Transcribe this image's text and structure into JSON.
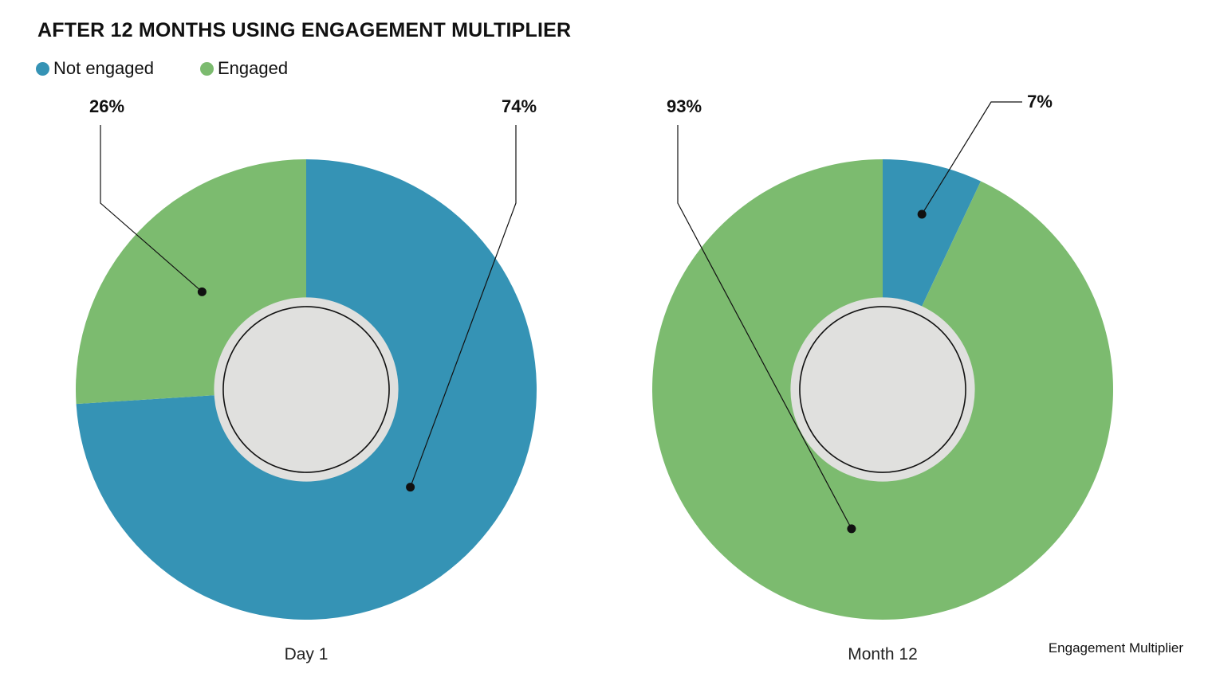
{
  "title": "AFTER 12 MONTHS USING ENGAGEMENT MULTIPLIER",
  "legend": [
    {
      "label": "Not engaged",
      "color": "#3593b5"
    },
    {
      "label": "Engaged",
      "color": "#7cbb6f"
    }
  ],
  "source": "Engagement Multiplier",
  "colors": {
    "hole": "#e0e0de",
    "hole_ring": "#111111",
    "leader": "#111111"
  },
  "chart_data": [
    {
      "type": "pie",
      "title": "Day 1",
      "categories": [
        "Not engaged",
        "Engaged"
      ],
      "values": [
        74,
        26
      ],
      "labels": [
        "74%",
        "26%"
      ],
      "colors": [
        "#3593b5",
        "#7cbb6f"
      ]
    },
    {
      "type": "pie",
      "title": "Month 12",
      "categories": [
        "Not engaged",
        "Engaged"
      ],
      "values": [
        7,
        93
      ],
      "labels": [
        "7%",
        "93%"
      ],
      "colors": [
        "#3593b5",
        "#7cbb6f"
      ]
    }
  ]
}
